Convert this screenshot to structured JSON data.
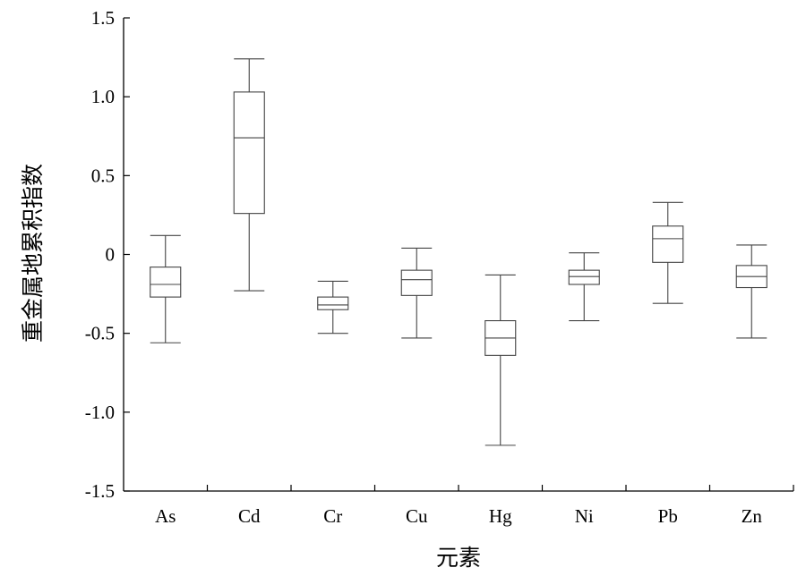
{
  "chart_data": {
    "type": "boxplot",
    "title": "",
    "xlabel": "元素",
    "ylabel": "重金属地累积指数",
    "ylim": [
      -1.5,
      1.5
    ],
    "yticks": [
      1.5,
      1.0,
      0.5,
      0,
      -0.5,
      -1.0,
      -1.5
    ],
    "ytick_labels": [
      "1.5",
      "1.0",
      "0.5",
      "0",
      "-0.5",
      "-1.0",
      "-1.5"
    ],
    "categories": [
      "As",
      "Cd",
      "Cr",
      "Cu",
      "Hg",
      "Ni",
      "Pb",
      "Zn"
    ],
    "boxes": [
      {
        "label": "As",
        "min": -0.56,
        "q1": -0.27,
        "median": -0.19,
        "q3": -0.08,
        "max": 0.12
      },
      {
        "label": "Cd",
        "min": -0.23,
        "q1": 0.26,
        "median": 0.74,
        "q3": 1.03,
        "max": 1.24
      },
      {
        "label": "Cr",
        "min": -0.5,
        "q1": -0.35,
        "median": -0.32,
        "q3": -0.27,
        "max": -0.17
      },
      {
        "label": "Cu",
        "min": -0.53,
        "q1": -0.26,
        "median": -0.16,
        "q3": -0.1,
        "max": 0.04
      },
      {
        "label": "Hg",
        "min": -1.21,
        "q1": -0.64,
        "median": -0.53,
        "q3": -0.42,
        "max": -0.13
      },
      {
        "label": "Ni",
        "min": -0.42,
        "q1": -0.19,
        "median": -0.14,
        "q3": -0.1,
        "max": 0.01
      },
      {
        "label": "Pb",
        "min": -0.31,
        "q1": -0.05,
        "median": 0.1,
        "q3": 0.18,
        "max": 0.33
      },
      {
        "label": "Zn",
        "min": -0.53,
        "q1": -0.21,
        "median": -0.14,
        "q3": -0.07,
        "max": 0.06
      }
    ],
    "grid": false,
    "legend": "none",
    "colors": {
      "box": "#444444",
      "axis": "#000000"
    }
  }
}
